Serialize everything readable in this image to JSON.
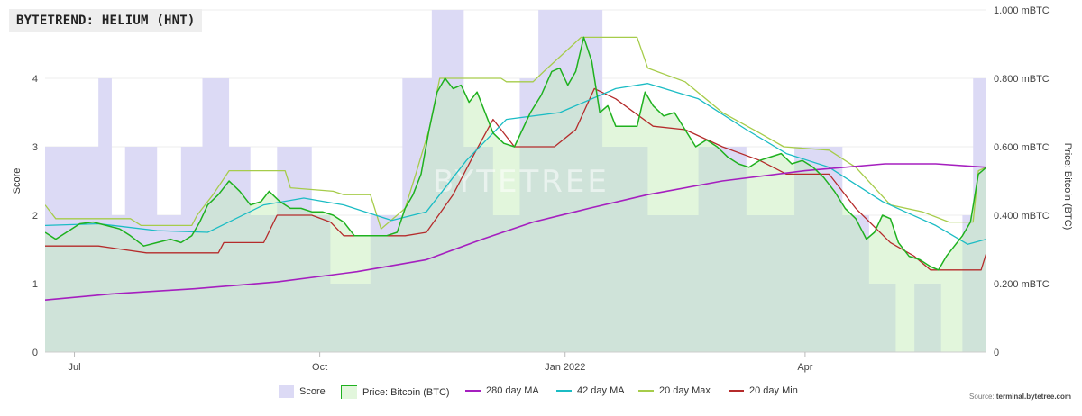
{
  "header": {
    "title": "BYTETREND: HELIUM (HNT)"
  },
  "watermark": "BYTETREE",
  "source": {
    "label": "Source:",
    "site": "terminal.bytetree.com"
  },
  "colors": {
    "score": "#dcdaf5",
    "price_fill": "#e2f6dc",
    "overlap": "#cfe3d9",
    "price_line": "#1fb11f",
    "ma280": "#a51fbf",
    "ma42": "#1bbcc4",
    "max20": "#a6cc4a",
    "min20": "#b52b2b",
    "grid": "#ececec",
    "axis_text": "#444444"
  },
  "legend": [
    {
      "label": "Score",
      "color": "#dcdaf5",
      "kind": "box"
    },
    {
      "label": "Price: Bitcoin (BTC)",
      "color": "#e2f6dc",
      "kind": "box",
      "border": "#1fb11f"
    },
    {
      "label": "280 day MA",
      "color": "#a51fbf",
      "kind": "line"
    },
    {
      "label": "42 day MA",
      "color": "#1bbcc4",
      "kind": "line"
    },
    {
      "label": "20 day Max",
      "color": "#a6cc4a",
      "kind": "line"
    },
    {
      "label": "20 day Min",
      "color": "#b52b2b",
      "kind": "line"
    }
  ],
  "chart_data": {
    "type": "line",
    "x_range": [
      "2021-06-20",
      "2022-06-08"
    ],
    "x_ticks": [
      {
        "date": "2021-07-01",
        "label": "Jul"
      },
      {
        "date": "2021-10-01",
        "label": "Oct"
      },
      {
        "date": "2022-01-01",
        "label": "Jan 2022"
      },
      {
        "date": "2022-04-01",
        "label": "Apr"
      }
    ],
    "y_left": {
      "label": "Score",
      "min": 0,
      "max": 5,
      "ticks": [
        0,
        1,
        2,
        3,
        4
      ]
    },
    "y_right": {
      "label": "Price: Bitcoin (BTC)",
      "min": 0,
      "max": 1.0,
      "ticks": [
        0,
        0.2,
        0.4,
        0.6,
        0.8,
        1.0
      ],
      "tick_labels": [
        "0",
        "0.200 mBTC",
        "0.400 mBTC",
        "0.600 mBTC",
        "0.800 mBTC",
        "1.000 mBTC"
      ]
    },
    "score_series": {
      "name": "Score",
      "axis": "left",
      "points": [
        [
          "2021-06-20",
          3
        ],
        [
          "2021-06-30",
          3
        ],
        [
          "2021-07-10",
          4
        ],
        [
          "2021-07-15",
          2
        ],
        [
          "2021-07-20",
          3
        ],
        [
          "2021-08-01",
          2
        ],
        [
          "2021-08-10",
          3
        ],
        [
          "2021-08-18",
          4
        ],
        [
          "2021-08-28",
          3
        ],
        [
          "2021-09-05",
          2
        ],
        [
          "2021-09-15",
          3
        ],
        [
          "2021-09-28",
          2
        ],
        [
          "2021-10-05",
          1
        ],
        [
          "2021-10-20",
          2
        ],
        [
          "2021-11-01",
          4
        ],
        [
          "2021-11-12",
          5
        ],
        [
          "2021-11-24",
          3
        ],
        [
          "2021-12-05",
          2
        ],
        [
          "2021-12-15",
          4
        ],
        [
          "2021-12-22",
          5
        ],
        [
          "2022-01-15",
          3
        ],
        [
          "2022-02-01",
          2
        ],
        [
          "2022-02-20",
          3
        ],
        [
          "2022-03-10",
          2
        ],
        [
          "2022-03-28",
          3
        ],
        [
          "2022-04-15",
          2
        ],
        [
          "2022-04-25",
          1
        ],
        [
          "2022-05-05",
          0
        ],
        [
          "2022-05-12",
          1
        ],
        [
          "2022-05-22",
          0
        ],
        [
          "2022-05-30",
          2
        ],
        [
          "2022-06-03",
          4
        ],
        [
          "2022-06-08",
          5
        ]
      ]
    },
    "series": [
      {
        "name": "Price: Bitcoin (BTC)",
        "axis": "right",
        "points": [
          [
            "2021-06-20",
            0.35
          ],
          [
            "2021-06-24",
            0.33
          ],
          [
            "2021-06-28",
            0.35
          ],
          [
            "2021-07-03",
            0.375
          ],
          [
            "2021-07-08",
            0.38
          ],
          [
            "2021-07-13",
            0.37
          ],
          [
            "2021-07-18",
            0.36
          ],
          [
            "2021-07-22",
            0.34
          ],
          [
            "2021-07-27",
            0.31
          ],
          [
            "2021-08-01",
            0.32
          ],
          [
            "2021-08-06",
            0.33
          ],
          [
            "2021-08-10",
            0.32
          ],
          [
            "2021-08-14",
            0.34
          ],
          [
            "2021-08-17",
            0.38
          ],
          [
            "2021-08-20",
            0.43
          ],
          [
            "2021-08-24",
            0.46
          ],
          [
            "2021-08-28",
            0.5
          ],
          [
            "2021-09-01",
            0.47
          ],
          [
            "2021-09-05",
            0.43
          ],
          [
            "2021-09-09",
            0.44
          ],
          [
            "2021-09-12",
            0.47
          ],
          [
            "2021-09-16",
            0.44
          ],
          [
            "2021-09-20",
            0.42
          ],
          [
            "2021-09-24",
            0.42
          ],
          [
            "2021-09-28",
            0.41
          ],
          [
            "2021-10-02",
            0.41
          ],
          [
            "2021-10-06",
            0.4
          ],
          [
            "2021-10-10",
            0.38
          ],
          [
            "2021-10-14",
            0.34
          ],
          [
            "2021-10-18",
            0.34
          ],
          [
            "2021-10-22",
            0.34
          ],
          [
            "2021-10-26",
            0.34
          ],
          [
            "2021-10-30",
            0.35
          ],
          [
            "2021-11-02",
            0.42
          ],
          [
            "2021-11-05",
            0.46
          ],
          [
            "2021-11-08",
            0.52
          ],
          [
            "2021-11-11",
            0.65
          ],
          [
            "2021-11-14",
            0.76
          ],
          [
            "2021-11-17",
            0.8
          ],
          [
            "2021-11-20",
            0.77
          ],
          [
            "2021-11-23",
            0.78
          ],
          [
            "2021-11-26",
            0.73
          ],
          [
            "2021-11-29",
            0.76
          ],
          [
            "2021-12-02",
            0.7
          ],
          [
            "2021-12-05",
            0.64
          ],
          [
            "2021-12-09",
            0.61
          ],
          [
            "2021-12-13",
            0.6
          ],
          [
            "2021-12-16",
            0.65
          ],
          [
            "2021-12-19",
            0.7
          ],
          [
            "2021-12-23",
            0.75
          ],
          [
            "2021-12-27",
            0.82
          ],
          [
            "2021-12-30",
            0.83
          ],
          [
            "2022-01-02",
            0.78
          ],
          [
            "2022-01-05",
            0.82
          ],
          [
            "2022-01-08",
            0.92
          ],
          [
            "2022-01-11",
            0.85
          ],
          [
            "2022-01-14",
            0.7
          ],
          [
            "2022-01-17",
            0.72
          ],
          [
            "2022-01-20",
            0.66
          ],
          [
            "2022-01-24",
            0.66
          ],
          [
            "2022-01-28",
            0.66
          ],
          [
            "2022-01-31",
            0.76
          ],
          [
            "2022-02-03",
            0.72
          ],
          [
            "2022-02-07",
            0.69
          ],
          [
            "2022-02-11",
            0.7
          ],
          [
            "2022-02-15",
            0.65
          ],
          [
            "2022-02-19",
            0.6
          ],
          [
            "2022-02-23",
            0.62
          ],
          [
            "2022-02-27",
            0.6
          ],
          [
            "2022-03-03",
            0.57
          ],
          [
            "2022-03-07",
            0.55
          ],
          [
            "2022-03-11",
            0.54
          ],
          [
            "2022-03-15",
            0.56
          ],
          [
            "2022-03-19",
            0.57
          ],
          [
            "2022-03-23",
            0.58
          ],
          [
            "2022-03-27",
            0.55
          ],
          [
            "2022-03-31",
            0.56
          ],
          [
            "2022-04-04",
            0.54
          ],
          [
            "2022-04-08",
            0.51
          ],
          [
            "2022-04-12",
            0.47
          ],
          [
            "2022-04-16",
            0.42
          ],
          [
            "2022-04-20",
            0.39
          ],
          [
            "2022-04-24",
            0.33
          ],
          [
            "2022-04-27",
            0.35
          ],
          [
            "2022-04-30",
            0.4
          ],
          [
            "2022-05-03",
            0.39
          ],
          [
            "2022-05-06",
            0.32
          ],
          [
            "2022-05-10",
            0.28
          ],
          [
            "2022-05-14",
            0.27
          ],
          [
            "2022-05-18",
            0.25
          ],
          [
            "2022-05-21",
            0.24
          ],
          [
            "2022-05-24",
            0.28
          ],
          [
            "2022-05-27",
            0.31
          ],
          [
            "2022-05-30",
            0.34
          ],
          [
            "2022-06-02",
            0.38
          ],
          [
            "2022-06-05",
            0.52
          ],
          [
            "2022-06-08",
            0.54
          ]
        ]
      },
      {
        "name": "280 day MA",
        "axis": "right",
        "points": [
          [
            "2021-06-20",
            0.152
          ],
          [
            "2021-07-15",
            0.17
          ],
          [
            "2021-08-15",
            0.185
          ],
          [
            "2021-09-15",
            0.205
          ],
          [
            "2021-10-15",
            0.235
          ],
          [
            "2021-11-10",
            0.27
          ],
          [
            "2021-12-01",
            0.33
          ],
          [
            "2021-12-20",
            0.38
          ],
          [
            "2022-01-10",
            0.42
          ],
          [
            "2022-02-01",
            0.46
          ],
          [
            "2022-03-01",
            0.5
          ],
          [
            "2022-04-01",
            0.53
          ],
          [
            "2022-05-01",
            0.55
          ],
          [
            "2022-05-20",
            0.55
          ],
          [
            "2022-06-08",
            0.54
          ]
        ]
      },
      {
        "name": "42 day MA",
        "axis": "right",
        "points": [
          [
            "2021-06-20",
            0.37
          ],
          [
            "2021-07-10",
            0.375
          ],
          [
            "2021-08-01",
            0.355
          ],
          [
            "2021-08-20",
            0.35
          ],
          [
            "2021-09-10",
            0.43
          ],
          [
            "2021-09-25",
            0.45
          ],
          [
            "2021-10-10",
            0.43
          ],
          [
            "2021-10-28",
            0.385
          ],
          [
            "2021-11-10",
            0.41
          ],
          [
            "2021-11-25",
            0.56
          ],
          [
            "2021-12-10",
            0.68
          ],
          [
            "2021-12-30",
            0.7
          ],
          [
            "2022-01-20",
            0.77
          ],
          [
            "2022-02-01",
            0.785
          ],
          [
            "2022-02-20",
            0.74
          ],
          [
            "2022-03-10",
            0.65
          ],
          [
            "2022-03-25",
            0.58
          ],
          [
            "2022-04-10",
            0.54
          ],
          [
            "2022-04-30",
            0.44
          ],
          [
            "2022-05-20",
            0.37
          ],
          [
            "2022-06-01",
            0.315
          ],
          [
            "2022-06-08",
            0.33
          ]
        ]
      },
      {
        "name": "20 day Max",
        "axis": "right",
        "points": [
          [
            "2021-06-20",
            0.43
          ],
          [
            "2021-06-24",
            0.39
          ],
          [
            "2021-07-22",
            0.39
          ],
          [
            "2021-07-26",
            0.37
          ],
          [
            "2021-08-14",
            0.37
          ],
          [
            "2021-08-16",
            0.4
          ],
          [
            "2021-08-22",
            0.46
          ],
          [
            "2021-08-28",
            0.53
          ],
          [
            "2021-09-18",
            0.53
          ],
          [
            "2021-09-20",
            0.48
          ],
          [
            "2021-10-06",
            0.47
          ],
          [
            "2021-10-10",
            0.46
          ],
          [
            "2021-10-20",
            0.46
          ],
          [
            "2021-10-24",
            0.36
          ],
          [
            "2021-11-02",
            0.42
          ],
          [
            "2021-11-06",
            0.52
          ],
          [
            "2021-11-11",
            0.65
          ],
          [
            "2021-11-15",
            0.8
          ],
          [
            "2021-12-08",
            0.8
          ],
          [
            "2021-12-10",
            0.79
          ],
          [
            "2021-12-20",
            0.79
          ],
          [
            "2021-12-24",
            0.82
          ],
          [
            "2022-01-07",
            0.92
          ],
          [
            "2022-01-28",
            0.92
          ],
          [
            "2022-02-01",
            0.83
          ],
          [
            "2022-02-15",
            0.79
          ],
          [
            "2022-03-01",
            0.7
          ],
          [
            "2022-03-15",
            0.64
          ],
          [
            "2022-03-24",
            0.6
          ],
          [
            "2022-04-10",
            0.59
          ],
          [
            "2022-04-20",
            0.54
          ],
          [
            "2022-05-03",
            0.43
          ],
          [
            "2022-05-15",
            0.41
          ],
          [
            "2022-05-25",
            0.38
          ],
          [
            "2022-06-03",
            0.38
          ],
          [
            "2022-06-05",
            0.53
          ],
          [
            "2022-06-08",
            0.54
          ]
        ]
      },
      {
        "name": "20 day Min",
        "axis": "right",
        "points": [
          [
            "2021-06-20",
            0.31
          ],
          [
            "2021-07-10",
            0.31
          ],
          [
            "2021-07-28",
            0.29
          ],
          [
            "2021-08-24",
            0.29
          ],
          [
            "2021-08-26",
            0.32
          ],
          [
            "2021-09-10",
            0.32
          ],
          [
            "2021-09-15",
            0.4
          ],
          [
            "2021-09-28",
            0.4
          ],
          [
            "2021-10-05",
            0.38
          ],
          [
            "2021-10-10",
            0.34
          ],
          [
            "2021-11-02",
            0.34
          ],
          [
            "2021-11-10",
            0.35
          ],
          [
            "2021-11-20",
            0.46
          ],
          [
            "2021-11-28",
            0.58
          ],
          [
            "2021-12-05",
            0.68
          ],
          [
            "2021-12-13",
            0.6
          ],
          [
            "2021-12-28",
            0.6
          ],
          [
            "2022-01-05",
            0.65
          ],
          [
            "2022-01-12",
            0.77
          ],
          [
            "2022-01-20",
            0.74
          ],
          [
            "2022-02-03",
            0.66
          ],
          [
            "2022-02-15",
            0.65
          ],
          [
            "2022-03-01",
            0.6
          ],
          [
            "2022-03-15",
            0.56
          ],
          [
            "2022-03-25",
            0.52
          ],
          [
            "2022-04-10",
            0.52
          ],
          [
            "2022-04-20",
            0.42
          ],
          [
            "2022-05-03",
            0.32
          ],
          [
            "2022-05-12",
            0.28
          ],
          [
            "2022-05-18",
            0.24
          ],
          [
            "2022-06-06",
            0.24
          ],
          [
            "2022-06-08",
            0.29
          ]
        ]
      }
    ],
    "grid": "horizontal",
    "legend_position": "bottom"
  }
}
